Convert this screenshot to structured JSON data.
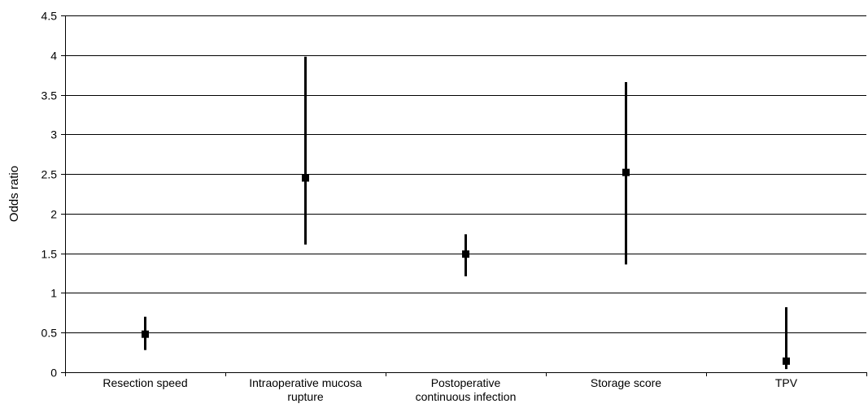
{
  "chart_data": {
    "type": "scatter",
    "title": "",
    "xlabel": "",
    "ylabel": "Odds ratio",
    "ylim": [
      0,
      4.5
    ],
    "yticks": [
      "0",
      "0.5",
      "1",
      "1.5",
      "2",
      "2.5",
      "3",
      "3.5",
      "4",
      "4.5"
    ],
    "grid": true,
    "categories": [
      [
        "Resection speed"
      ],
      [
        "Intraoperative mucosa",
        "rupture"
      ],
      [
        "Postoperative",
        "continuous infection"
      ],
      [
        "Storage score"
      ],
      [
        "TPV"
      ]
    ],
    "series": [
      {
        "values": [
          0.48,
          2.45,
          1.49,
          2.52,
          0.14
        ],
        "lower": [
          0.28,
          1.61,
          1.21,
          1.36,
          0.04
        ],
        "upper": [
          0.7,
          3.98,
          1.74,
          3.66,
          0.82
        ]
      }
    ],
    "colors": {
      "marks": "#000000",
      "grid": "#000000"
    }
  }
}
